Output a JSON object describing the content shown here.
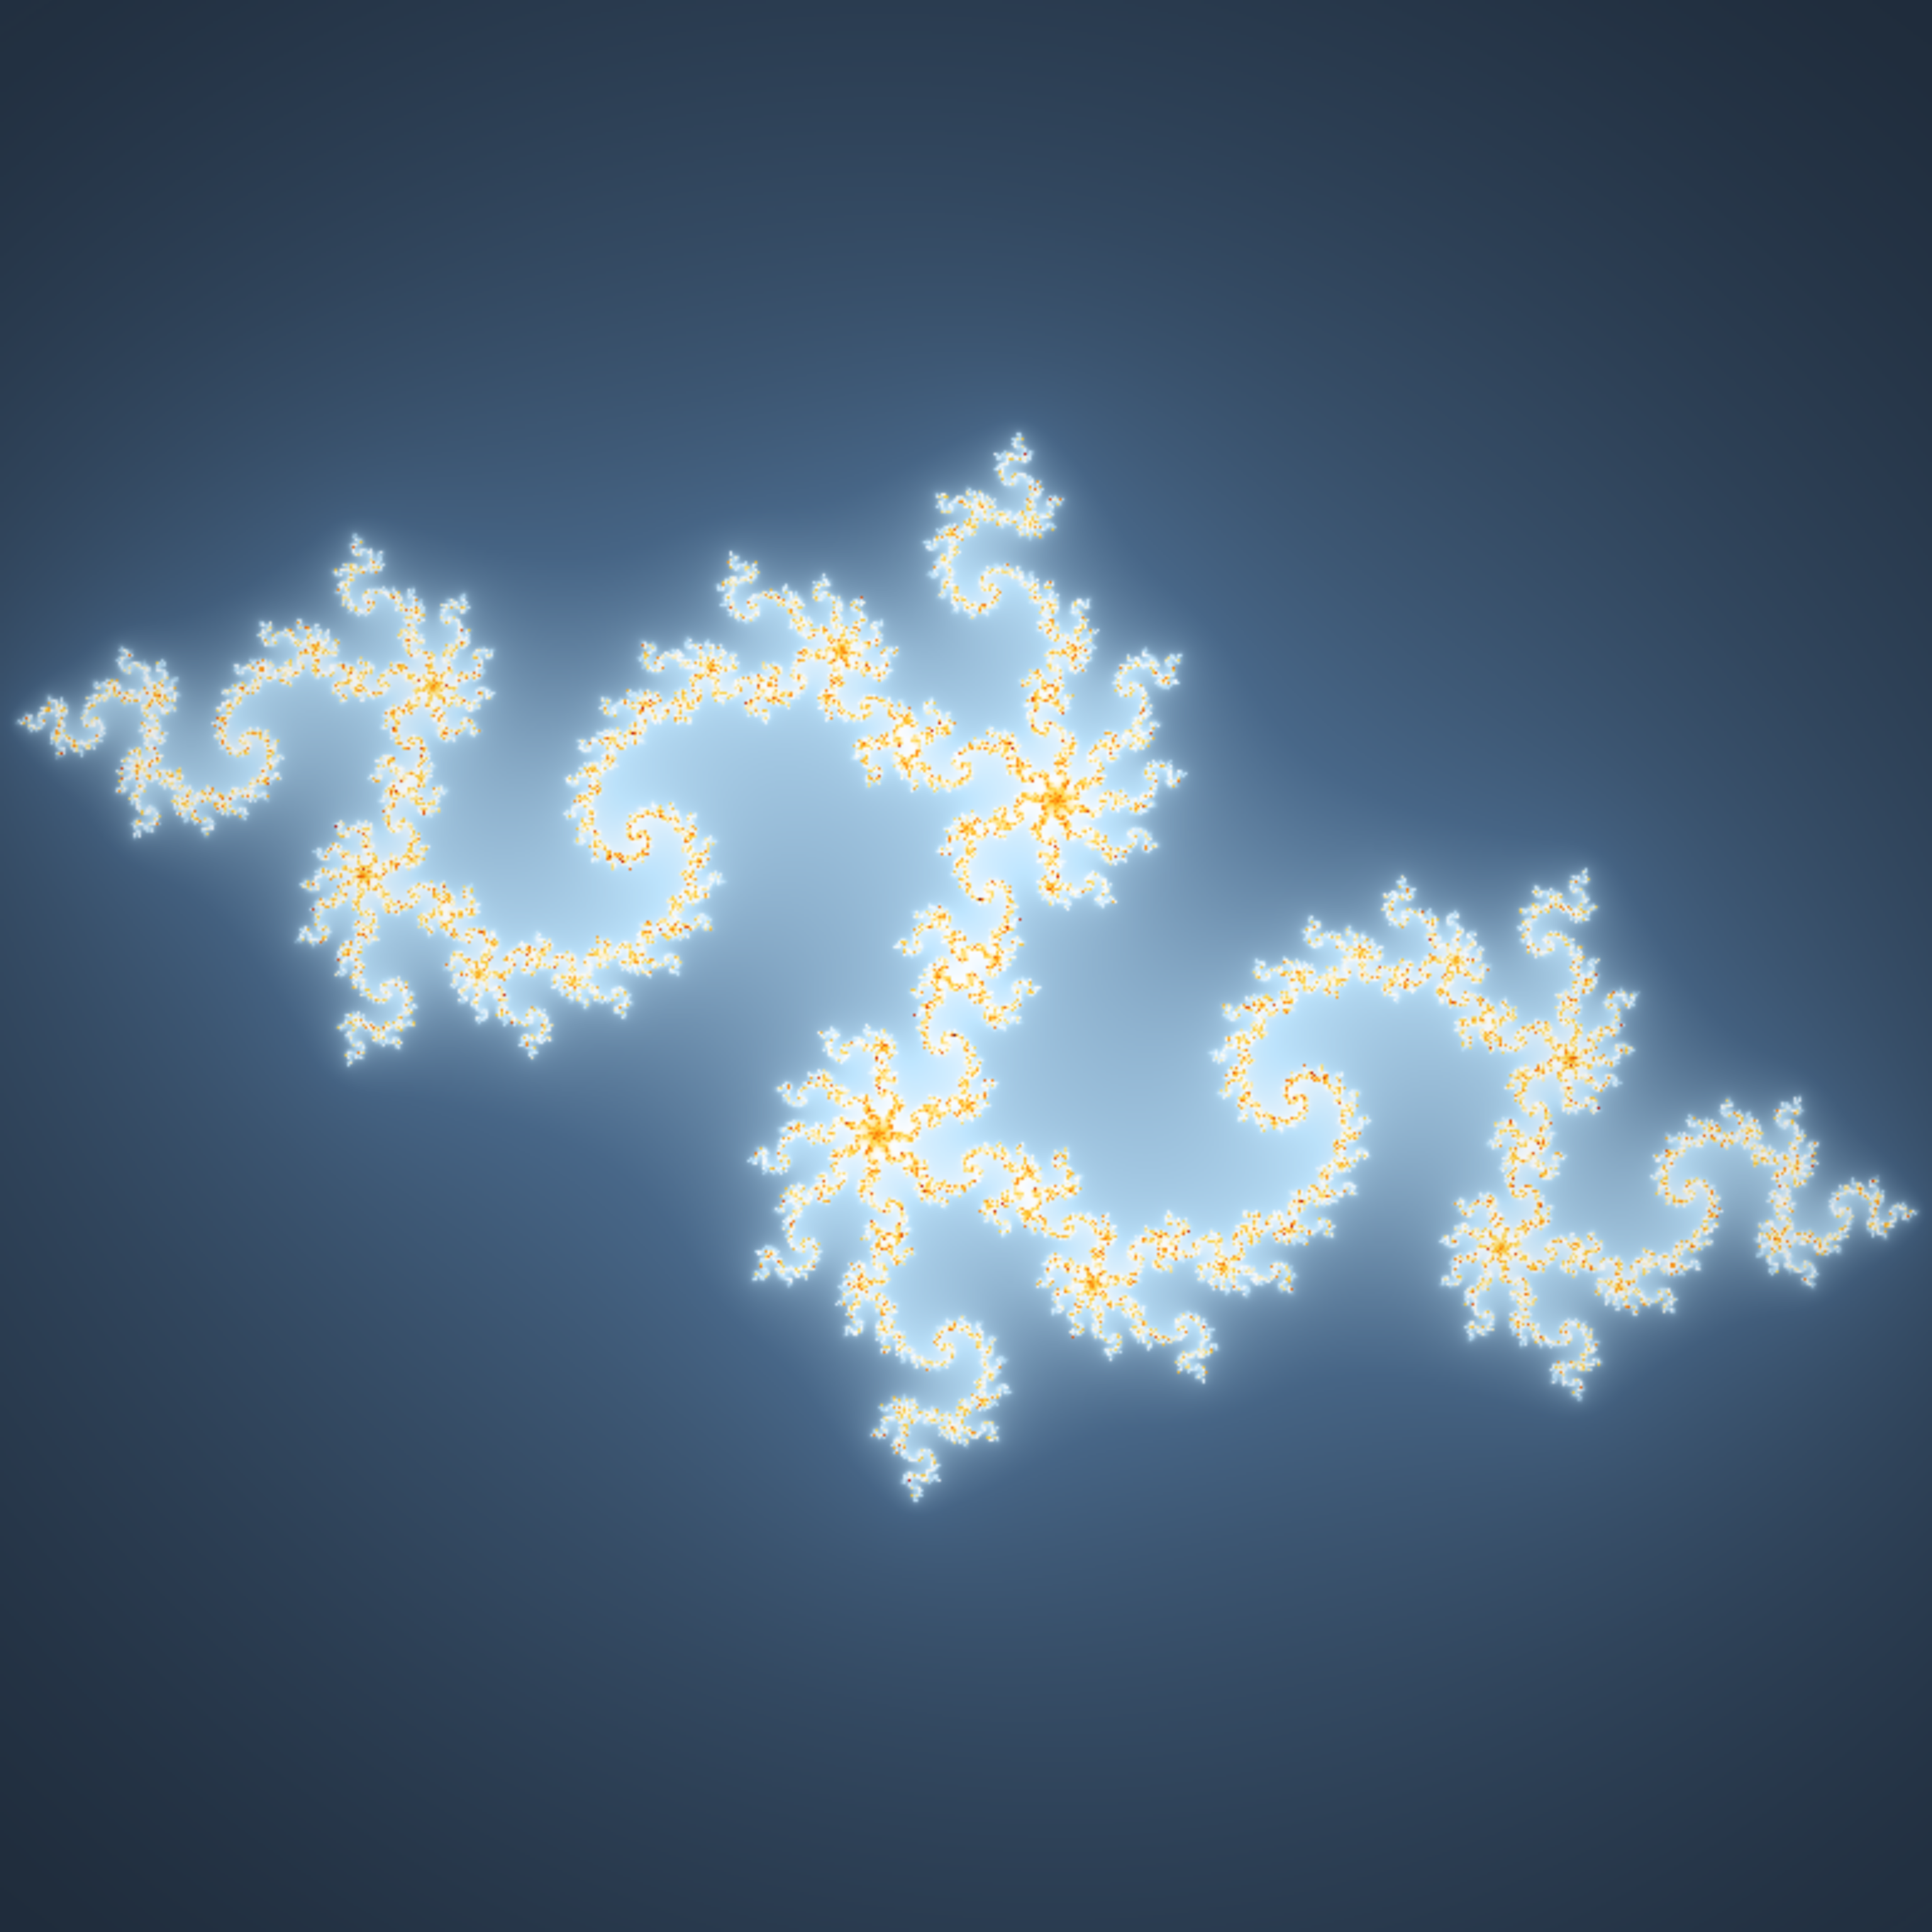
{
  "image": {
    "subject": "julia-set-fractal",
    "palette": {
      "background_edge": "#1b2634",
      "background_mid": "#4a6a8c",
      "glow": "#bfe6ff",
      "halo_white": "#ffffff",
      "yellow": "#ffd23a",
      "orange": "#ff7a00",
      "red": "#b80d00",
      "dark": "#1a0505",
      "blue": "#0a1cff",
      "green": "#25e63a",
      "magenta": "#e01fc8",
      "navy": "#0c1a3c"
    }
  }
}
